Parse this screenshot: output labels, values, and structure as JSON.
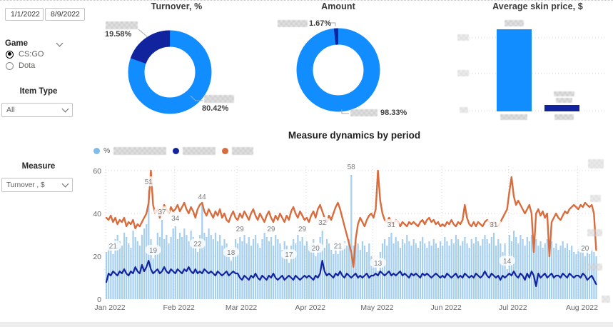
{
  "filters": {
    "date_start": "1/1/2022",
    "date_end": "8/9/2022",
    "game": {
      "label": "Game",
      "options": [
        {
          "label": "CS:GO",
          "selected": true
        },
        {
          "label": "Dota",
          "selected": false
        }
      ]
    },
    "item_type": {
      "label": "Item Type",
      "value": "All"
    },
    "measure": {
      "label": "Measure",
      "value": "Turnover , $"
    }
  },
  "colors": {
    "blue": "#118DFF",
    "navy": "#12239E",
    "orange": "#D96C3C",
    "bar_light": "#A6CFEF",
    "legend_blue": "#7FBCE9",
    "grid": "#d8d8d8",
    "axis_text": "#666666",
    "label_text": "#7a7a7a"
  },
  "chart_data": [
    {
      "id": "turnover_pct",
      "type": "pie",
      "title": "Turnover, %",
      "slices": [
        {
          "label_redacted": true,
          "value": 19.58,
          "display": "19.58%",
          "color": "#12239E"
        },
        {
          "label_redacted": true,
          "value": 80.42,
          "display": "80.42%",
          "color": "#118DFF"
        }
      ]
    },
    {
      "id": "amount",
      "type": "pie",
      "title": "Amount",
      "slices": [
        {
          "label_redacted": true,
          "value": 1.67,
          "display": "1.67%",
          "color": "#12239E"
        },
        {
          "label_redacted": true,
          "value": 98.33,
          "display": "98.33%",
          "color": "#118DFF"
        }
      ]
    },
    {
      "id": "avg_skin_price",
      "type": "bar",
      "title": "Average skin price, $",
      "note": "y-axis ticks, category names and data labels are blurred in source",
      "y_ticks_redacted": 3,
      "bars": [
        {
          "label_redacted": true,
          "relative_height": 0.79,
          "color": "#118DFF"
        },
        {
          "label_redacted": true,
          "relative_height": 0.065,
          "color": "#12239E"
        }
      ]
    },
    {
      "id": "measure_dynamics",
      "type": "combo",
      "title": "Measure dynamics by period",
      "x_ticks": [
        "Jan 2022",
        "Feb 2022",
        "Mar 2022",
        "Apr 2022",
        "May 2022",
        "Jun 2022",
        "Jul 2022",
        "Aug 2022"
      ],
      "y_ticks": [
        0,
        20,
        40,
        60
      ],
      "secondary_axis_labels_redacted": 5,
      "series": [
        {
          "name": "%",
          "name_suffix_redacted": true,
          "type": "bar",
          "color": "#A6CFEF",
          "values": [
            22,
            26,
            24,
            21,
            28,
            30,
            27,
            25,
            31,
            29,
            26,
            24,
            32,
            29,
            27,
            25,
            30,
            33,
            35,
            51,
            28,
            19,
            25,
            31,
            29,
            37,
            28,
            30,
            26,
            29,
            33,
            34,
            28,
            31,
            29,
            33,
            30,
            27,
            32,
            29,
            25,
            22,
            30,
            44,
            31,
            29,
            33,
            30,
            28,
            31,
            27,
            30,
            25,
            28,
            26,
            24,
            18,
            24,
            28,
            26,
            29,
            27,
            30,
            26,
            29,
            25,
            28,
            30,
            26,
            24,
            28,
            31,
            29,
            27,
            29,
            25,
            30,
            28,
            26,
            23,
            27,
            25,
            17,
            25,
            28,
            26,
            30,
            27,
            29,
            25,
            27,
            25,
            26,
            28,
            20,
            26,
            29,
            32,
            24,
            28,
            26,
            23,
            21,
            27,
            21,
            26,
            24,
            27,
            25,
            28,
            58,
            25,
            28,
            26,
            23,
            27,
            25,
            22,
            26,
            20,
            18,
            16,
            13,
            22,
            26,
            28,
            25,
            29,
            31,
            26,
            29,
            27,
            24,
            28,
            26,
            30,
            27,
            25,
            28,
            26,
            24,
            27,
            29,
            26,
            24,
            27,
            25,
            28,
            26,
            24,
            27,
            25,
            29,
            27,
            25,
            28,
            26,
            30,
            28,
            25,
            27,
            29,
            26,
            24,
            28,
            26,
            29,
            27,
            25,
            28,
            30,
            28,
            26,
            29,
            31,
            25,
            28,
            26,
            22,
            26,
            14,
            30,
            27,
            32,
            29,
            26,
            30,
            28,
            25,
            29,
            27,
            30,
            26,
            28,
            25,
            27,
            24,
            26,
            28,
            25,
            27,
            24,
            26,
            23,
            25,
            27,
            24,
            26,
            23,
            25,
            22,
            21,
            24,
            22,
            25,
            20,
            23,
            21,
            24,
            22,
            20
          ]
        },
        {
          "name_redacted": true,
          "type": "line",
          "color": "#12239E",
          "values": [
            8,
            12,
            11,
            13,
            12,
            11,
            13,
            12,
            14,
            12,
            11,
            13,
            12,
            15,
            13,
            12,
            16,
            13,
            15,
            18,
            14,
            12,
            13,
            14,
            12,
            13,
            15,
            13,
            12,
            14,
            13,
            12,
            14,
            13,
            12,
            14,
            13,
            15,
            13,
            12,
            14,
            12,
            13,
            12,
            14,
            13,
            12,
            13,
            12,
            11,
            13,
            12,
            11,
            12,
            13,
            11,
            12,
            13,
            12,
            12,
            10,
            9,
            11,
            10,
            9,
            11,
            10,
            12,
            10,
            9,
            11,
            10,
            9,
            11,
            10,
            12,
            10,
            9,
            10,
            11,
            9,
            10,
            11,
            10,
            9,
            11,
            10,
            9,
            10,
            11,
            10,
            11,
            10,
            9,
            11,
            10,
            12,
            18,
            13,
            11,
            12,
            11,
            10,
            12,
            11,
            13,
            11,
            10,
            12,
            11,
            10,
            11,
            12,
            10,
            11,
            10,
            11,
            12,
            10,
            11,
            11,
            12,
            11,
            13,
            12,
            11,
            12,
            13,
            11,
            12,
            11,
            12,
            13,
            11,
            12,
            11,
            10,
            12,
            11,
            12,
            11,
            10,
            12,
            11,
            12,
            11,
            10,
            11,
            12,
            11,
            10,
            11,
            10,
            12,
            11,
            10,
            11,
            12,
            10,
            11,
            10,
            12,
            11,
            10,
            11,
            10,
            12,
            11,
            10,
            11,
            13,
            11,
            10,
            12,
            11,
            10,
            11,
            9,
            11,
            10,
            11,
            12,
            11,
            13,
            11,
            10,
            12,
            11,
            9,
            12,
            10,
            13,
            11,
            6,
            12,
            10,
            11,
            12,
            10,
            11,
            12,
            10,
            11,
            11,
            10,
            12,
            11,
            10,
            12,
            11,
            10,
            11,
            11,
            10,
            12,
            11,
            9,
            10,
            11,
            9,
            7
          ]
        },
        {
          "name_redacted": true,
          "type": "line",
          "color": "#D96C3C",
          "values": [
            38,
            37,
            39,
            36,
            38,
            35,
            37,
            36,
            38,
            34,
            36,
            35,
            37,
            33,
            35,
            34,
            36,
            38,
            40,
            45,
            60,
            44,
            40,
            42,
            38,
            41,
            44,
            42,
            40,
            43,
            41,
            42,
            44,
            41,
            43,
            45,
            42,
            40,
            43,
            41,
            38,
            42,
            44,
            45,
            41,
            39,
            42,
            40,
            38,
            41,
            39,
            42,
            38,
            40,
            37,
            36,
            39,
            41,
            38,
            37,
            40,
            38,
            41,
            39,
            37,
            40,
            42,
            39,
            37,
            40,
            38,
            36,
            39,
            41,
            38,
            36,
            39,
            37,
            40,
            38,
            36,
            39,
            37,
            41,
            43,
            40,
            38,
            41,
            39,
            37,
            38,
            36,
            39,
            41,
            38,
            42,
            44,
            41,
            38,
            36,
            39,
            37,
            40,
            43,
            45,
            42,
            38,
            34,
            30,
            26,
            22,
            15,
            28,
            35,
            38,
            36,
            34,
            37,
            39,
            40,
            38,
            42,
            60,
            46,
            40,
            37,
            36,
            38,
            36,
            35,
            37,
            36,
            34,
            36,
            35,
            34,
            36,
            35,
            36,
            35,
            34,
            36,
            37,
            35,
            37,
            38,
            36,
            37,
            35,
            36,
            34,
            35,
            34,
            36,
            35,
            37,
            35,
            34,
            36,
            35,
            37,
            44,
            38,
            35,
            34,
            36,
            34,
            36,
            35,
            34,
            36,
            37,
            36,
            34,
            36,
            35,
            34,
            36,
            38,
            40,
            42,
            50,
            57,
            48,
            44,
            46,
            44,
            42,
            40,
            42,
            44,
            40,
            22,
            40,
            42,
            39,
            41,
            38,
            40,
            20,
            36,
            38,
            40,
            38,
            37,
            39,
            41,
            40,
            42,
            43,
            44,
            43,
            42,
            44,
            43,
            45,
            44,
            43,
            44,
            40,
            23
          ]
        }
      ],
      "bar_labels": [
        {
          "index": 3,
          "value": 21
        },
        {
          "index": 19,
          "value": 51
        },
        {
          "index": 21,
          "value": 19
        },
        {
          "index": 25,
          "value": 37
        },
        {
          "index": 31,
          "value": 34
        },
        {
          "index": 41,
          "value": 22
        },
        {
          "index": 43,
          "value": 44
        },
        {
          "index": 56,
          "value": 18
        },
        {
          "index": 60,
          "value": 29
        },
        {
          "index": 74,
          "value": 29
        },
        {
          "index": 82,
          "value": 17
        },
        {
          "index": 88,
          "value": 29
        },
        {
          "index": 94,
          "value": 20
        },
        {
          "index": 97,
          "value": 32
        },
        {
          "index": 104,
          "value": 21
        },
        {
          "index": 110,
          "value": 58
        },
        {
          "index": 122,
          "value": 13
        },
        {
          "index": 128,
          "value": 31
        },
        {
          "index": 174,
          "value": 31
        },
        {
          "index": 180,
          "value": 14
        },
        {
          "index": 215,
          "value": 20
        }
      ]
    }
  ]
}
